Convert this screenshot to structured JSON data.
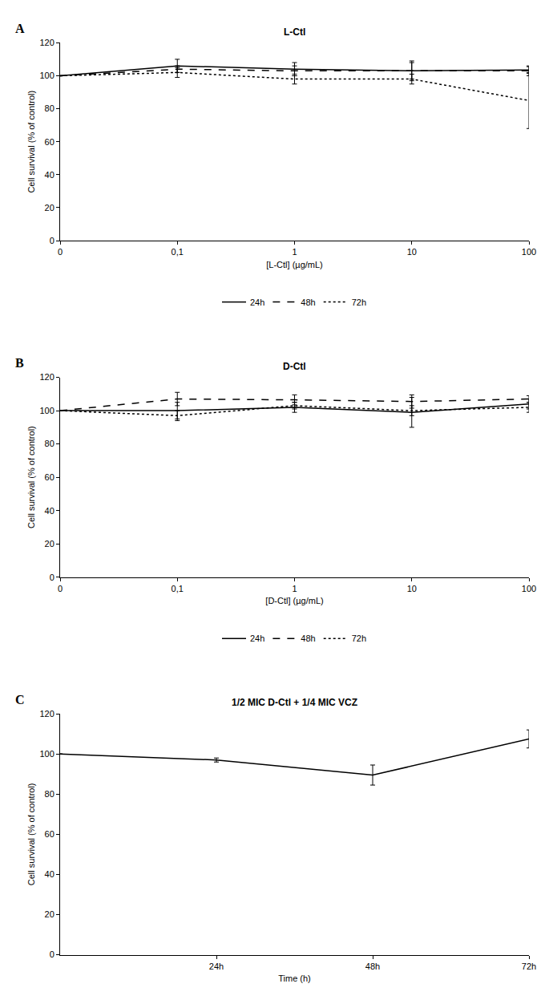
{
  "chart_data": [
    {
      "type": "line",
      "annotations": [
        "A"
      ],
      "title": "L-Ctl",
      "x_label": "[L-Ctl] (µg/mL)",
      "y_label": "Cell survival (% of control)",
      "categories": [
        "0",
        "0,1",
        "1",
        "10",
        "100"
      ],
      "series": [
        {
          "name": "24h",
          "color": "#000000",
          "line_style": "solid",
          "values": [
            100,
            106,
            104,
            103,
            103.5
          ],
          "errors": [
            0,
            4,
            4,
            6,
            2
          ]
        },
        {
          "name": "48h",
          "color": "#000000",
          "line_style": "dash",
          "values": [
            100,
            104,
            103,
            103,
            103
          ],
          "errors": [
            0,
            2,
            3,
            5,
            3
          ]
        },
        {
          "name": "72h",
          "color": "#000000",
          "line_style": "dot",
          "values": [
            100,
            102,
            98,
            98,
            85
          ],
          "errors": [
            0,
            3,
            3,
            3,
            17
          ]
        }
      ],
      "ylim": [
        0,
        120
      ],
      "yticks": [
        0,
        20,
        40,
        60,
        80,
        100,
        120
      ],
      "grid": false,
      "legend": "bottom"
    },
    {
      "type": "line",
      "annotations": [
        "B"
      ],
      "title": "D-Ctl",
      "x_label": "[D-Ctl] (µg/mL)",
      "y_label": "Cell survival (% of control)",
      "categories": [
        "0",
        "0,1",
        "1",
        "10",
        "100"
      ],
      "series": [
        {
          "name": "24h",
          "color": "#000000",
          "line_style": "solid",
          "values": [
            100,
            100,
            102,
            99,
            104
          ],
          "errors": [
            0,
            5,
            3,
            9,
            3
          ]
        },
        {
          "name": "48h",
          "color": "#000000",
          "line_style": "dash",
          "values": [
            100,
            107,
            106.5,
            105.5,
            107
          ],
          "errors": [
            0,
            4,
            3,
            4,
            2
          ]
        },
        {
          "name": "72h",
          "color": "#000000",
          "line_style": "dot",
          "values": [
            100,
            97,
            103,
            100,
            102
          ],
          "errors": [
            0,
            3,
            2,
            3,
            3
          ]
        }
      ],
      "ylim": [
        0,
        120
      ],
      "yticks": [
        0,
        20,
        40,
        60,
        80,
        100,
        120
      ],
      "grid": false,
      "legend": "bottom"
    },
    {
      "type": "line",
      "annotations": [
        "C"
      ],
      "title": "1/2 MIC D-Ctl + 1/4 MIC VCZ",
      "x_label": "Time (h)",
      "y_label": "Cell survival (% of control)",
      "categories": [
        null,
        "24h",
        "48h",
        "72h"
      ],
      "series": [
        {
          "color": "#000000",
          "line_style": "solid",
          "values": [
            100,
            97,
            89.5,
            107.5
          ],
          "errors": [
            0,
            1,
            5,
            4.5
          ]
        }
      ],
      "ylim": [
        0,
        120
      ],
      "yticks": [
        0,
        20,
        40,
        60,
        80,
        100,
        120
      ],
      "grid": false
    }
  ]
}
